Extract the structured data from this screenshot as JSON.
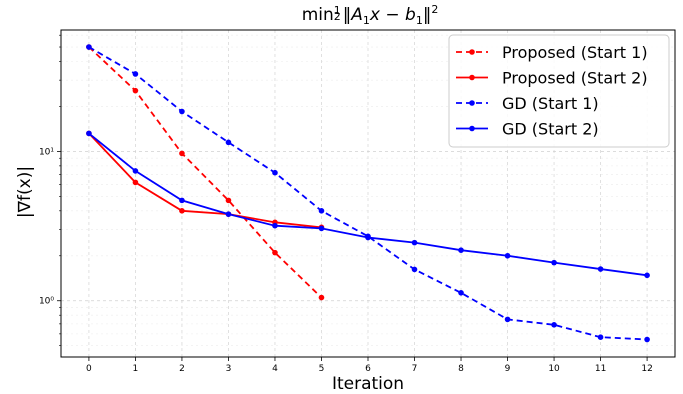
{
  "chart_data": {
    "type": "line",
    "title": "min½‖A₁x − b₁‖²",
    "xlabel": "Iteration",
    "ylabel": "|∇f(x)|",
    "yscale": "log",
    "xlim": [
      -0.6,
      12.6
    ],
    "ylim": [
      0.42,
      65
    ],
    "grid": true,
    "legend_position": "top-right",
    "xticks": [
      0,
      1,
      2,
      3,
      4,
      5,
      6,
      7,
      8,
      9,
      10,
      11,
      12
    ],
    "yticks": [
      {
        "value": 1,
        "label": "10⁰"
      },
      {
        "value": 10,
        "label": "10¹"
      }
    ],
    "series": [
      {
        "name": "Proposed (Start 1)",
        "color": "#ff0000",
        "dash": "dashed",
        "x": [
          0,
          1,
          2,
          3,
          4,
          5
        ],
        "values": [
          50,
          25.5,
          9.7,
          4.7,
          2.1,
          1.05
        ]
      },
      {
        "name": "Proposed (Start 2)",
        "color": "#ff0000",
        "dash": "solid",
        "x": [
          0,
          1,
          2,
          3,
          4,
          5
        ],
        "values": [
          13.2,
          6.2,
          4.0,
          3.8,
          3.35,
          3.1
        ]
      },
      {
        "name": "GD (Start 1)",
        "color": "#0000ff",
        "dash": "dashed",
        "x": [
          0,
          1,
          2,
          3,
          4,
          5,
          6,
          7,
          8,
          9,
          10,
          11,
          12
        ],
        "values": [
          50,
          33,
          18.5,
          11.5,
          7.2,
          4.0,
          2.7,
          1.62,
          1.13,
          0.75,
          0.69,
          0.57,
          0.55
        ]
      },
      {
        "name": "GD (Start 2)",
        "color": "#0000ff",
        "dash": "solid",
        "x": [
          0,
          1,
          2,
          3,
          4,
          5,
          6,
          7,
          8,
          9,
          10,
          11,
          12
        ],
        "values": [
          13.2,
          7.4,
          4.7,
          3.8,
          3.18,
          3.05,
          2.65,
          2.45,
          2.18,
          2.0,
          1.8,
          1.63,
          1.48
        ]
      }
    ]
  }
}
